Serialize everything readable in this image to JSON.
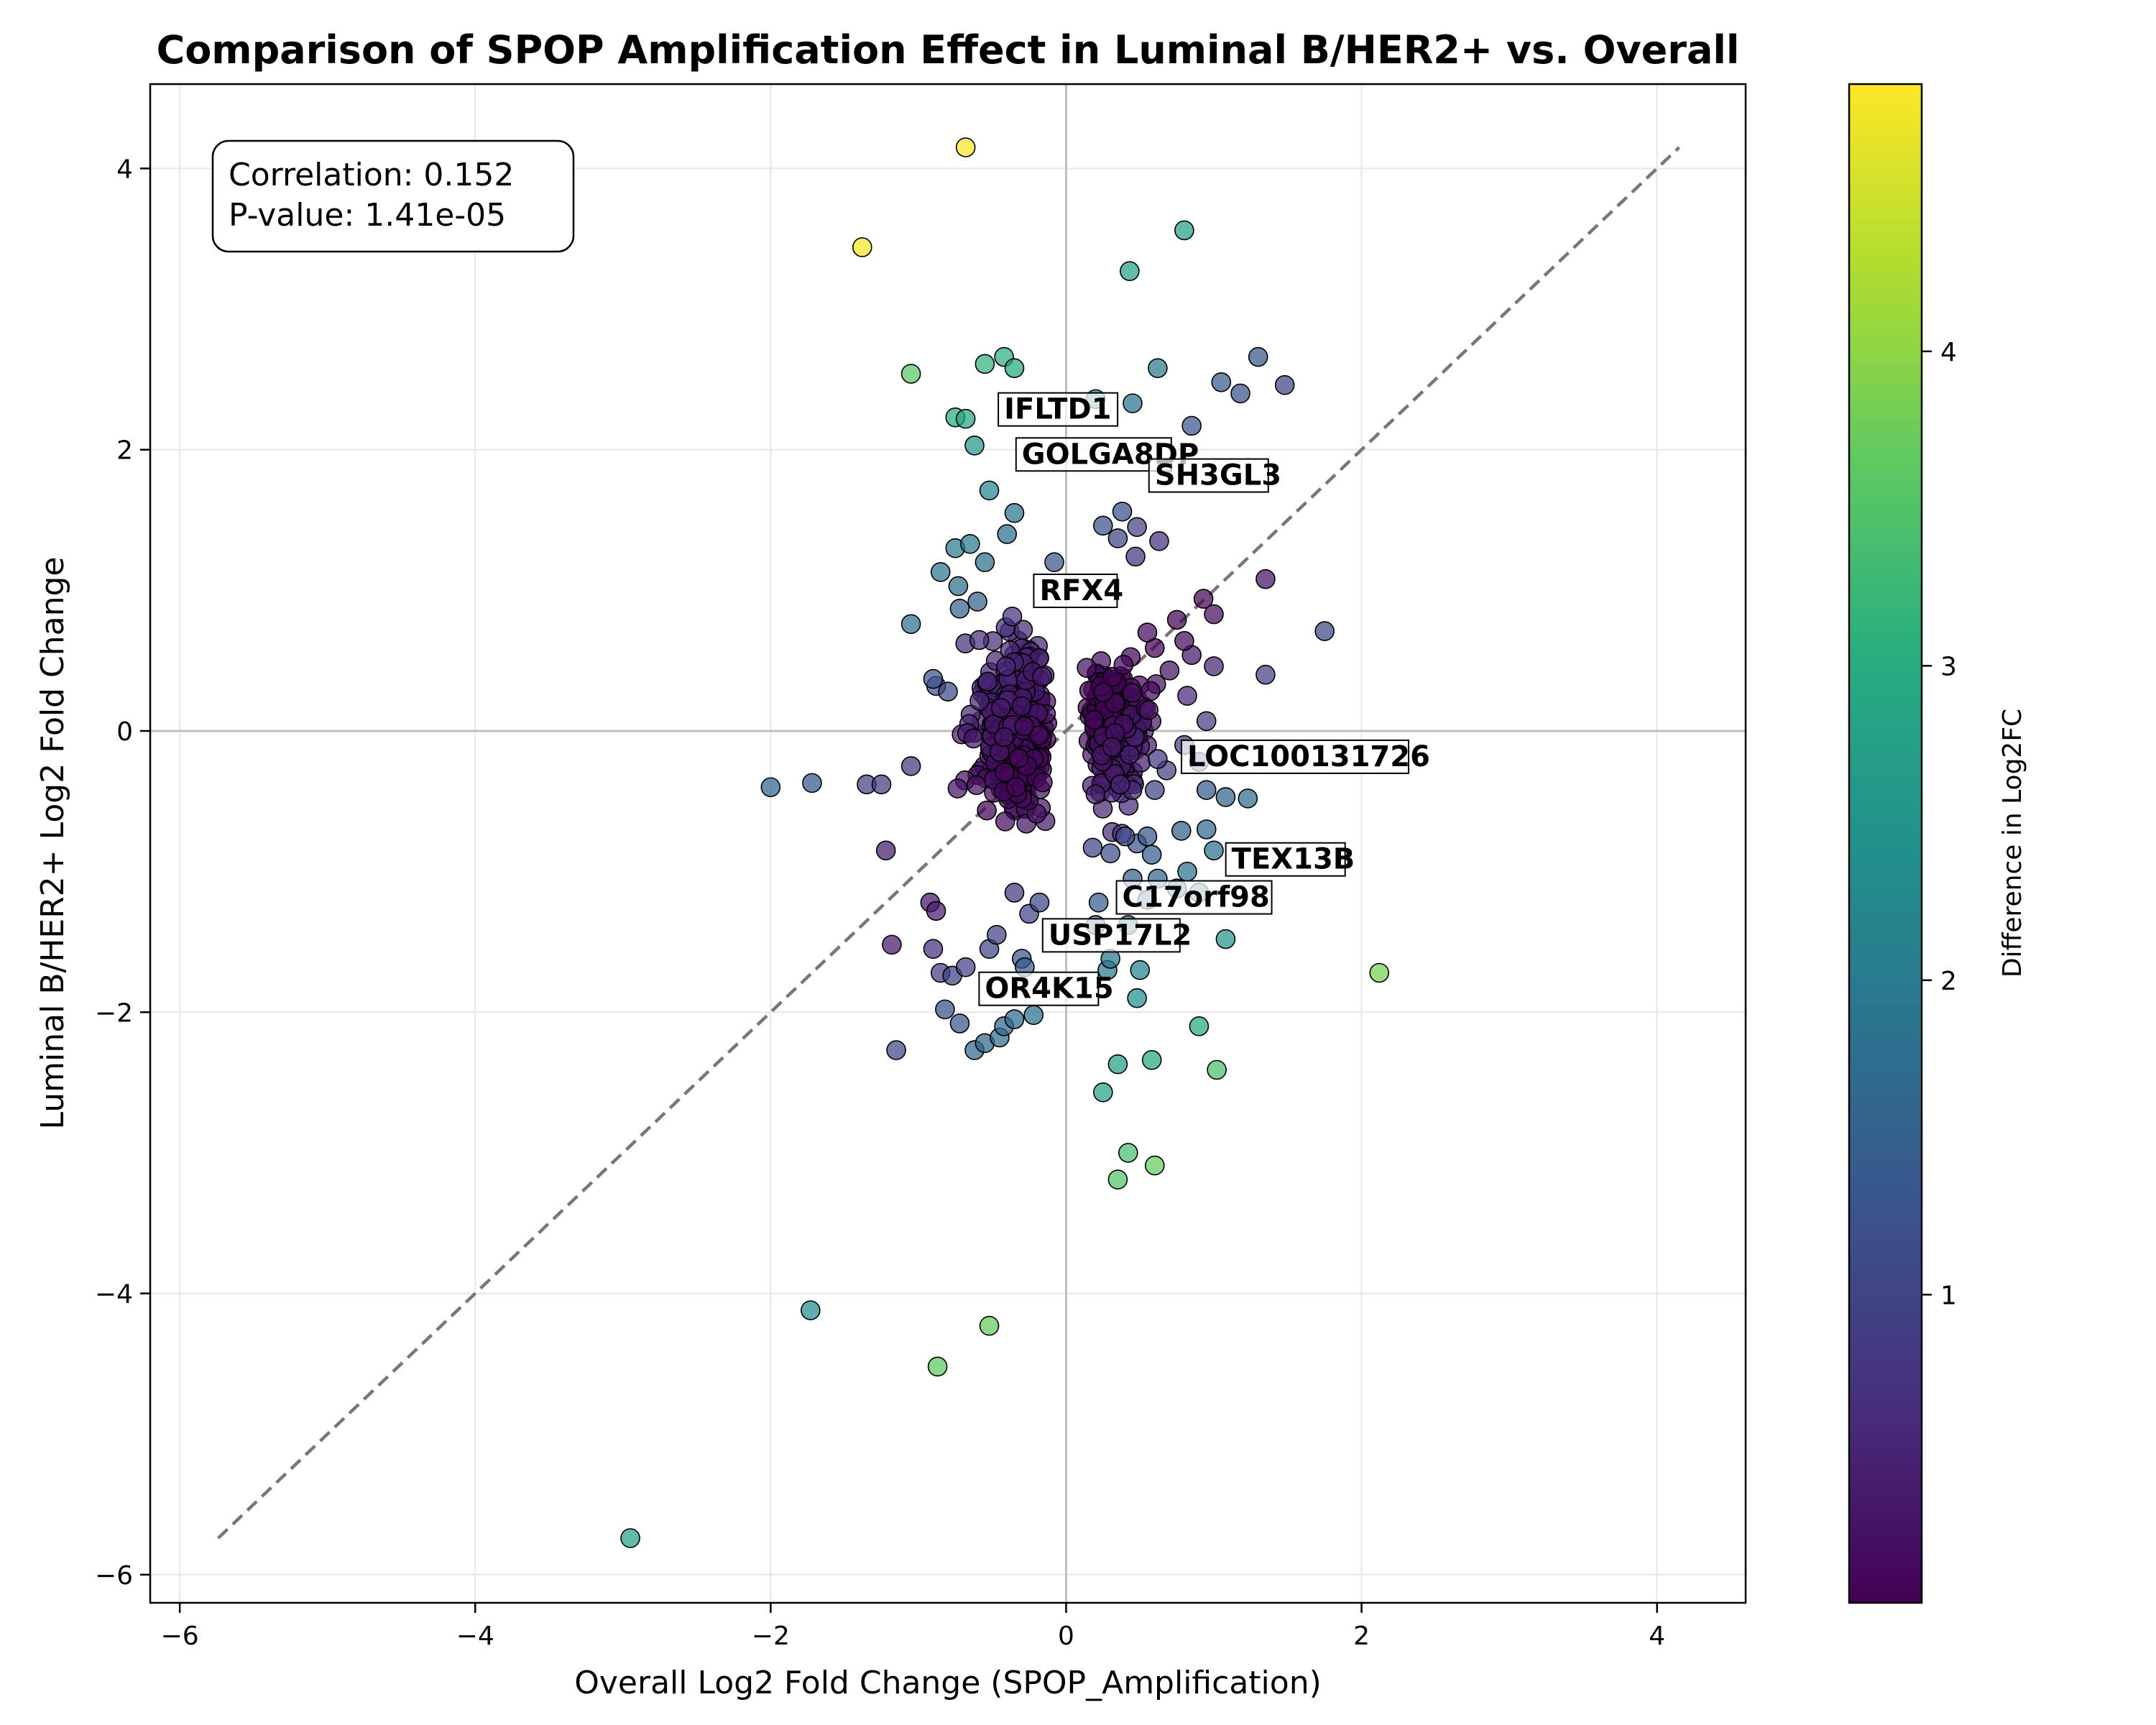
{
  "chart_data": {
    "type": "scatter",
    "title": "Comparison of SPOP Amplification Effect in Luminal B/HER2+ vs. Overall",
    "xlabel": "Overall Log2 Fold Change (SPOP_Amplification)",
    "ylabel": "Luminal B/HER2+ Log2 Fold Change",
    "xlim": [
      -6.2,
      4.6
    ],
    "ylim": [
      -6.2,
      4.6
    ],
    "x_ticks": [
      -6,
      -4,
      -2,
      0,
      2,
      4
    ],
    "y_ticks": [
      -6,
      -4,
      -2,
      0,
      2,
      4
    ],
    "x_tick_labels": [
      "−6",
      "−4",
      "−2",
      "0",
      "2",
      "4"
    ],
    "y_tick_labels": [
      "−6",
      "−4",
      "−2",
      "0",
      "2",
      "4"
    ],
    "grid": true,
    "reference_lines": [
      "x = 0",
      "y = 0",
      "y = x (dashed)"
    ],
    "stats_box": {
      "correlation": "Correlation: 0.152",
      "pvalue": "P-value: 1.41e-05"
    },
    "colorbar": {
      "label": "Difference in Log2FC",
      "colormap": "viridis",
      "range": [
        0.02,
        4.85
      ],
      "ticks": [
        1,
        2,
        3,
        4
      ],
      "tick_labels": [
        "1",
        "2",
        "3",
        "4"
      ]
    },
    "labeled_genes": [
      {
        "name": "IFLTD1",
        "x": -0.42,
        "y": 2.22
      },
      {
        "name": "GOLGA8DP",
        "x": -0.3,
        "y": 1.9
      },
      {
        "name": "SH3GL3",
        "x": 0.6,
        "y": 1.75
      },
      {
        "name": "RFX4",
        "x": -0.18,
        "y": 0.93
      },
      {
        "name": "LOC100131726",
        "x": 0.82,
        "y": -0.25
      },
      {
        "name": "TEX13B",
        "x": 1.12,
        "y": -0.98
      },
      {
        "name": "C17orf98",
        "x": 0.38,
        "y": -1.25
      },
      {
        "name": "USP17L2",
        "x": -0.12,
        "y": -1.52
      },
      {
        "name": "OR4K15",
        "x": -0.55,
        "y": -1.9
      }
    ],
    "points": [
      {
        "x": -0.68,
        "y": 4.15,
        "diff": 4.83
      },
      {
        "x": -1.38,
        "y": 3.44,
        "diff": 4.82
      },
      {
        "x": 0.8,
        "y": 3.56,
        "diff": 2.76
      },
      {
        "x": 0.43,
        "y": 3.27,
        "diff": 2.84
      },
      {
        "x": -1.05,
        "y": 2.54,
        "diff": 3.59
      },
      {
        "x": -0.55,
        "y": 2.61,
        "diff": 3.16
      },
      {
        "x": -0.42,
        "y": 2.66,
        "diff": 3.08
      },
      {
        "x": -0.35,
        "y": 2.58,
        "diff": 2.93
      },
      {
        "x": -0.75,
        "y": 2.23,
        "diff": 2.98
      },
      {
        "x": -0.68,
        "y": 2.22,
        "diff": 2.9
      },
      {
        "x": -0.62,
        "y": 2.03,
        "diff": 2.65
      },
      {
        "x": -0.52,
        "y": 1.71,
        "diff": 2.23
      },
      {
        "x": 0.2,
        "y": 2.36,
        "diff": 2.16
      },
      {
        "x": 0.45,
        "y": 2.33,
        "diff": 1.88
      },
      {
        "x": 0.62,
        "y": 2.58,
        "diff": 1.96
      },
      {
        "x": 1.3,
        "y": 2.66,
        "diff": 1.36
      },
      {
        "x": 1.48,
        "y": 2.46,
        "diff": 0.98
      },
      {
        "x": 1.05,
        "y": 2.48,
        "diff": 1.43
      },
      {
        "x": 1.18,
        "y": 2.4,
        "diff": 1.22
      },
      {
        "x": 0.85,
        "y": 2.17,
        "diff": 1.32
      },
      {
        "x": 0.25,
        "y": 1.46,
        "diff": 1.21
      },
      {
        "x": 0.38,
        "y": 1.56,
        "diff": 1.18
      },
      {
        "x": 0.48,
        "y": 1.45,
        "diff": 0.97
      },
      {
        "x": 0.35,
        "y": 1.37,
        "diff": 1.02
      },
      {
        "x": 0.63,
        "y": 1.35,
        "diff": 0.72
      },
      {
        "x": 0.47,
        "y": 1.24,
        "diff": 0.77
      },
      {
        "x": 1.35,
        "y": 1.08,
        "diff": 0.27
      },
      {
        "x": 0.93,
        "y": 0.94,
        "diff": 0.01
      },
      {
        "x": 0.75,
        "y": 0.79,
        "diff": 0.04
      },
      {
        "x": 1.0,
        "y": 0.83,
        "diff": 0.17
      },
      {
        "x": 1.75,
        "y": 0.71,
        "diff": 1.04
      },
      {
        "x": 0.85,
        "y": 0.54,
        "diff": 0.31
      },
      {
        "x": 1.0,
        "y": 0.46,
        "diff": 0.54
      },
      {
        "x": 1.35,
        "y": 0.4,
        "diff": 0.95
      },
      {
        "x": 0.95,
        "y": 0.07,
        "diff": 0.88
      },
      {
        "x": 0.82,
        "y": 0.25,
        "diff": 0.57
      },
      {
        "x": 0.7,
        "y": 0.43,
        "diff": 0.27
      },
      {
        "x": 0.6,
        "y": 0.59,
        "diff": 0.01
      },
      {
        "x": 0.55,
        "y": 0.7,
        "diff": 0.15
      },
      {
        "x": 0.8,
        "y": 0.64,
        "diff": 0.16
      },
      {
        "x": -0.08,
        "y": 1.2,
        "diff": 1.28
      },
      {
        "x": -0.35,
        "y": 1.55,
        "diff": 1.9
      },
      {
        "x": -0.4,
        "y": 1.4,
        "diff": 1.8
      },
      {
        "x": -0.75,
        "y": 1.3,
        "diff": 2.05
      },
      {
        "x": -0.65,
        "y": 1.33,
        "diff": 1.98
      },
      {
        "x": -0.85,
        "y": 1.13,
        "diff": 1.98
      },
      {
        "x": -0.55,
        "y": 1.2,
        "diff": 1.75
      },
      {
        "x": -0.73,
        "y": 1.03,
        "diff": 1.76
      },
      {
        "x": -0.72,
        "y": 0.87,
        "diff": 1.59
      },
      {
        "x": -1.05,
        "y": 0.76,
        "diff": 1.81
      },
      {
        "x": -0.6,
        "y": 0.92,
        "diff": 1.52
      },
      {
        "x": -0.88,
        "y": 0.32,
        "diff": 1.2
      },
      {
        "x": -0.9,
        "y": 0.37,
        "diff": 1.27
      },
      {
        "x": -0.8,
        "y": 0.28,
        "diff": 1.08
      },
      {
        "x": -2.0,
        "y": -0.4,
        "diff": 1.6
      },
      {
        "x": -1.72,
        "y": -0.37,
        "diff": 1.35
      },
      {
        "x": -1.35,
        "y": -0.38,
        "diff": 0.97
      },
      {
        "x": -1.25,
        "y": -0.38,
        "diff": 0.87
      },
      {
        "x": -1.05,
        "y": -0.25,
        "diff": 0.8
      },
      {
        "x": -1.22,
        "y": -0.85,
        "diff": 0.37
      },
      {
        "x": -1.18,
        "y": -1.52,
        "diff": 0.34
      },
      {
        "x": -0.92,
        "y": -1.22,
        "diff": 0.3
      },
      {
        "x": -0.88,
        "y": -1.28,
        "diff": 0.4
      },
      {
        "x": -0.9,
        "y": -1.55,
        "diff": 0.65
      },
      {
        "x": -0.85,
        "y": -1.72,
        "diff": 0.87
      },
      {
        "x": -0.77,
        "y": -1.74,
        "diff": 0.97
      },
      {
        "x": -0.68,
        "y": -1.68,
        "diff": 1.0
      },
      {
        "x": -0.82,
        "y": -1.98,
        "diff": 1.16
      },
      {
        "x": -0.72,
        "y": -2.08,
        "diff": 1.36
      },
      {
        "x": -1.15,
        "y": -2.27,
        "diff": 1.12
      },
      {
        "x": -0.62,
        "y": -2.27,
        "diff": 1.65
      },
      {
        "x": -0.55,
        "y": -2.22,
        "diff": 1.67
      },
      {
        "x": -0.45,
        "y": -2.18,
        "diff": 1.73
      },
      {
        "x": -0.42,
        "y": -2.1,
        "diff": 1.68
      },
      {
        "x": -0.35,
        "y": -2.05,
        "diff": 1.7
      },
      {
        "x": -0.22,
        "y": -2.02,
        "diff": 1.8
      },
      {
        "x": -0.3,
        "y": -1.62,
        "diff": 1.32
      },
      {
        "x": -0.28,
        "y": -1.68,
        "diff": 1.4
      },
      {
        "x": -0.52,
        "y": -1.55,
        "diff": 1.03
      },
      {
        "x": -0.47,
        "y": -1.45,
        "diff": 0.98
      },
      {
        "x": -0.35,
        "y": -1.15,
        "diff": 0.8
      },
      {
        "x": -0.25,
        "y": -1.3,
        "diff": 1.05
      },
      {
        "x": -0.18,
        "y": -1.22,
        "diff": 1.04
      },
      {
        "x": 0.2,
        "y": -1.38,
        "diff": 1.58
      },
      {
        "x": 0.22,
        "y": -1.22,
        "diff": 1.44
      },
      {
        "x": 0.28,
        "y": -1.7,
        "diff": 1.98
      },
      {
        "x": 0.3,
        "y": -1.62,
        "diff": 1.92
      },
      {
        "x": 0.5,
        "y": -1.7,
        "diff": 2.2
      },
      {
        "x": 0.48,
        "y": -1.9,
        "diff": 2.38
      },
      {
        "x": 0.42,
        "y": -1.38,
        "diff": 1.8
      },
      {
        "x": 0.55,
        "y": -1.2,
        "diff": 1.75
      },
      {
        "x": 0.62,
        "y": -1.05,
        "diff": 1.67
      },
      {
        "x": 0.45,
        "y": -1.05,
        "diff": 1.5
      },
      {
        "x": 0.58,
        "y": -0.88,
        "diff": 1.46
      },
      {
        "x": 0.48,
        "y": -0.8,
        "diff": 1.28
      },
      {
        "x": 0.55,
        "y": -0.75,
        "diff": 1.3
      },
      {
        "x": 0.4,
        "y": -0.75,
        "diff": 1.15
      },
      {
        "x": 0.3,
        "y": -0.87,
        "diff": 1.17
      },
      {
        "x": 0.18,
        "y": -0.83,
        "diff": 1.01
      },
      {
        "x": 0.78,
        "y": -0.71,
        "diff": 1.49
      },
      {
        "x": 0.82,
        "y": -1.0,
        "diff": 1.82
      },
      {
        "x": 0.95,
        "y": -0.7,
        "diff": 1.65
      },
      {
        "x": 1.0,
        "y": -0.85,
        "diff": 1.85
      },
      {
        "x": 1.08,
        "y": -1.48,
        "diff": 2.56
      },
      {
        "x": 0.9,
        "y": -1.15,
        "diff": 2.05
      },
      {
        "x": 0.75,
        "y": -1.12,
        "diff": 1.87
      },
      {
        "x": 0.95,
        "y": -0.42,
        "diff": 1.37
      },
      {
        "x": 1.08,
        "y": -0.47,
        "diff": 1.55
      },
      {
        "x": 1.23,
        "y": -0.48,
        "diff": 1.71
      },
      {
        "x": 0.9,
        "y": -0.22,
        "diff": 1.12
      },
      {
        "x": 0.8,
        "y": -0.1,
        "diff": 0.9
      },
      {
        "x": 0.68,
        "y": -0.28,
        "diff": 0.96
      },
      {
        "x": 0.6,
        "y": -0.42,
        "diff": 1.02
      },
      {
        "x": 0.62,
        "y": -0.2,
        "diff": 0.82
      },
      {
        "x": 2.12,
        "y": -1.72,
        "diff": 3.84
      },
      {
        "x": 0.9,
        "y": -2.1,
        "diff": 3.0
      },
      {
        "x": 1.02,
        "y": -2.41,
        "diff": 3.43
      },
      {
        "x": 0.58,
        "y": -2.34,
        "diff": 2.92
      },
      {
        "x": 0.35,
        "y": -2.37,
        "diff": 2.72
      },
      {
        "x": 0.25,
        "y": -2.57,
        "diff": 2.82
      },
      {
        "x": 0.42,
        "y": -3.0,
        "diff": 3.42
      },
      {
        "x": 0.6,
        "y": -3.09,
        "diff": 3.69
      },
      {
        "x": 0.35,
        "y": -3.19,
        "diff": 3.54
      },
      {
        "x": -1.73,
        "y": -4.12,
        "diff": 2.39
      },
      {
        "x": -0.52,
        "y": -4.23,
        "diff": 3.71
      },
      {
        "x": -0.87,
        "y": -4.52,
        "diff": 3.65
      },
      {
        "x": -2.95,
        "y": -5.74,
        "diff": 2.79
      }
    ],
    "cluster_points_description": "dense cloud of ~500 additional genes near x in [-0.9,-0.1] and [0.1,0.6], y in [-1.1,1.2]"
  }
}
